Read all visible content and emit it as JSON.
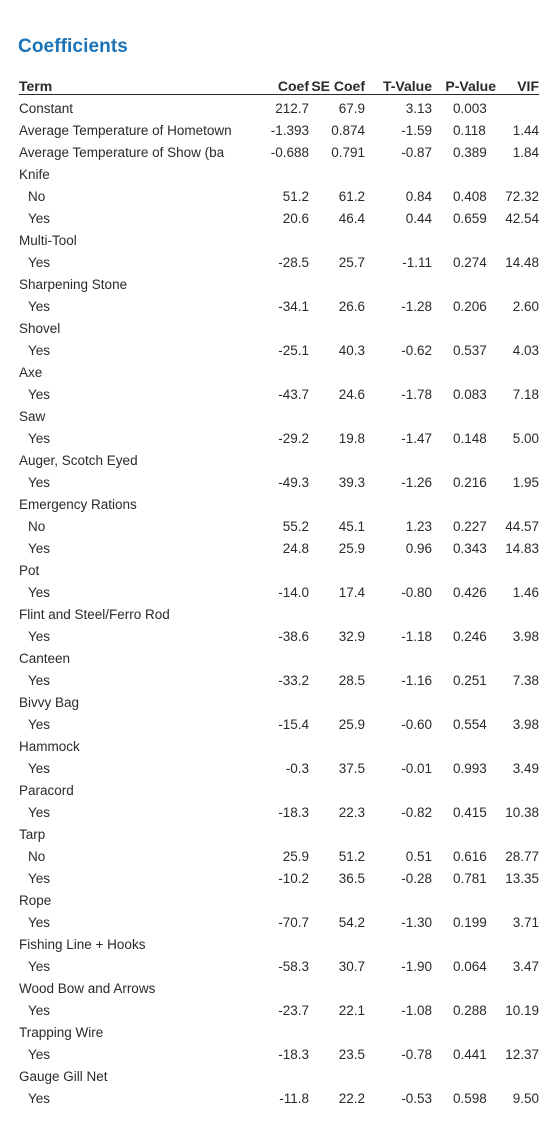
{
  "title": "Coefficients",
  "headers": {
    "term": "Term",
    "coef": "Coef",
    "se_coef": "SE Coef",
    "t_value": "T-Value",
    "p_value": "P-Value",
    "vif": "VIF"
  },
  "rows": [
    {
      "term": "Constant",
      "level": false,
      "coef": "212.7",
      "se": "67.9",
      "t": "3.13",
      "p": "0.003",
      "vif": ""
    },
    {
      "term": "Average Temperature of Hometown",
      "level": false,
      "coef": "-1.393",
      "se": "0.874",
      "t": "-1.59",
      "p": "0.118",
      "vif": "1.44"
    },
    {
      "term": "Average Temperature of Show (ba",
      "level": false,
      "coef": "-0.688",
      "se": "0.791",
      "t": "-0.87",
      "p": "0.389",
      "vif": "1.84"
    },
    {
      "term": "Knife",
      "level": false,
      "coef": "",
      "se": "",
      "t": "",
      "p": "",
      "vif": ""
    },
    {
      "term": "No",
      "level": true,
      "coef": "51.2",
      "se": "61.2",
      "t": "0.84",
      "p": "0.408",
      "vif": "72.32"
    },
    {
      "term": "Yes",
      "level": true,
      "coef": "20.6",
      "se": "46.4",
      "t": "0.44",
      "p": "0.659",
      "vif": "42.54"
    },
    {
      "term": "Multi-Tool",
      "level": false,
      "coef": "",
      "se": "",
      "t": "",
      "p": "",
      "vif": ""
    },
    {
      "term": "Yes",
      "level": true,
      "coef": "-28.5",
      "se": "25.7",
      "t": "-1.11",
      "p": "0.274",
      "vif": "14.48"
    },
    {
      "term": "Sharpening Stone",
      "level": false,
      "coef": "",
      "se": "",
      "t": "",
      "p": "",
      "vif": ""
    },
    {
      "term": "Yes",
      "level": true,
      "coef": "-34.1",
      "se": "26.6",
      "t": "-1.28",
      "p": "0.206",
      "vif": "2.60"
    },
    {
      "term": "Shovel",
      "level": false,
      "coef": "",
      "se": "",
      "t": "",
      "p": "",
      "vif": ""
    },
    {
      "term": "Yes",
      "level": true,
      "coef": "-25.1",
      "se": "40.3",
      "t": "-0.62",
      "p": "0.537",
      "vif": "4.03"
    },
    {
      "term": "Axe",
      "level": false,
      "coef": "",
      "se": "",
      "t": "",
      "p": "",
      "vif": ""
    },
    {
      "term": "Yes",
      "level": true,
      "coef": "-43.7",
      "se": "24.6",
      "t": "-1.78",
      "p": "0.083",
      "vif": "7.18"
    },
    {
      "term": "Saw",
      "level": false,
      "coef": "",
      "se": "",
      "t": "",
      "p": "",
      "vif": ""
    },
    {
      "term": "Yes",
      "level": true,
      "coef": "-29.2",
      "se": "19.8",
      "t": "-1.47",
      "p": "0.148",
      "vif": "5.00"
    },
    {
      "term": "Auger, Scotch Eyed",
      "level": false,
      "coef": "",
      "se": "",
      "t": "",
      "p": "",
      "vif": ""
    },
    {
      "term": "Yes",
      "level": true,
      "coef": "-49.3",
      "se": "39.3",
      "t": "-1.26",
      "p": "0.216",
      "vif": "1.95"
    },
    {
      "term": "Emergency Rations",
      "level": false,
      "coef": "",
      "se": "",
      "t": "",
      "p": "",
      "vif": ""
    },
    {
      "term": "No",
      "level": true,
      "coef": "55.2",
      "se": "45.1",
      "t": "1.23",
      "p": "0.227",
      "vif": "44.57"
    },
    {
      "term": "Yes",
      "level": true,
      "coef": "24.8",
      "se": "25.9",
      "t": "0.96",
      "p": "0.343",
      "vif": "14.83"
    },
    {
      "term": "Pot",
      "level": false,
      "coef": "",
      "se": "",
      "t": "",
      "p": "",
      "vif": ""
    },
    {
      "term": "Yes",
      "level": true,
      "coef": "-14.0",
      "se": "17.4",
      "t": "-0.80",
      "p": "0.426",
      "vif": "1.46"
    },
    {
      "term": "Flint and Steel/Ferro Rod",
      "level": false,
      "coef": "",
      "se": "",
      "t": "",
      "p": "",
      "vif": ""
    },
    {
      "term": "Yes",
      "level": true,
      "coef": "-38.6",
      "se": "32.9",
      "t": "-1.18",
      "p": "0.246",
      "vif": "3.98"
    },
    {
      "term": "Canteen",
      "level": false,
      "coef": "",
      "se": "",
      "t": "",
      "p": "",
      "vif": ""
    },
    {
      "term": "Yes",
      "level": true,
      "coef": "-33.2",
      "se": "28.5",
      "t": "-1.16",
      "p": "0.251",
      "vif": "7.38"
    },
    {
      "term": "Bivvy Bag",
      "level": false,
      "coef": "",
      "se": "",
      "t": "",
      "p": "",
      "vif": ""
    },
    {
      "term": "Yes",
      "level": true,
      "coef": "-15.4",
      "se": "25.9",
      "t": "-0.60",
      "p": "0.554",
      "vif": "3.98"
    },
    {
      "term": "Hammock",
      "level": false,
      "coef": "",
      "se": "",
      "t": "",
      "p": "",
      "vif": ""
    },
    {
      "term": "Yes",
      "level": true,
      "coef": "-0.3",
      "se": "37.5",
      "t": "-0.01",
      "p": "0.993",
      "vif": "3.49"
    },
    {
      "term": "Paracord",
      "level": false,
      "coef": "",
      "se": "",
      "t": "",
      "p": "",
      "vif": ""
    },
    {
      "term": "Yes",
      "level": true,
      "coef": "-18.3",
      "se": "22.3",
      "t": "-0.82",
      "p": "0.415",
      "vif": "10.38"
    },
    {
      "term": "Tarp",
      "level": false,
      "coef": "",
      "se": "",
      "t": "",
      "p": "",
      "vif": ""
    },
    {
      "term": "No",
      "level": true,
      "coef": "25.9",
      "se": "51.2",
      "t": "0.51",
      "p": "0.616",
      "vif": "28.77"
    },
    {
      "term": "Yes",
      "level": true,
      "coef": "-10.2",
      "se": "36.5",
      "t": "-0.28",
      "p": "0.781",
      "vif": "13.35"
    },
    {
      "term": "Rope",
      "level": false,
      "coef": "",
      "se": "",
      "t": "",
      "p": "",
      "vif": ""
    },
    {
      "term": "Yes",
      "level": true,
      "coef": "-70.7",
      "se": "54.2",
      "t": "-1.30",
      "p": "0.199",
      "vif": "3.71"
    },
    {
      "term": "Fishing Line + Hooks",
      "level": false,
      "coef": "",
      "se": "",
      "t": "",
      "p": "",
      "vif": ""
    },
    {
      "term": "Yes",
      "level": true,
      "coef": "-58.3",
      "se": "30.7",
      "t": "-1.90",
      "p": "0.064",
      "vif": "3.47"
    },
    {
      "term": "Wood Bow and Arrows",
      "level": false,
      "coef": "",
      "se": "",
      "t": "",
      "p": "",
      "vif": ""
    },
    {
      "term": "Yes",
      "level": true,
      "coef": "-23.7",
      "se": "22.1",
      "t": "-1.08",
      "p": "0.288",
      "vif": "10.19"
    },
    {
      "term": "Trapping Wire",
      "level": false,
      "coef": "",
      "se": "",
      "t": "",
      "p": "",
      "vif": ""
    },
    {
      "term": "Yes",
      "level": true,
      "coef": "-18.3",
      "se": "23.5",
      "t": "-0.78",
      "p": "0.441",
      "vif": "12.37"
    },
    {
      "term": "Gauge Gill Net",
      "level": false,
      "coef": "",
      "se": "",
      "t": "",
      "p": "",
      "vif": ""
    },
    {
      "term": "Yes",
      "level": true,
      "coef": "-11.8",
      "se": "22.2",
      "t": "-0.53",
      "p": "0.598",
      "vif": "9.50"
    }
  ]
}
